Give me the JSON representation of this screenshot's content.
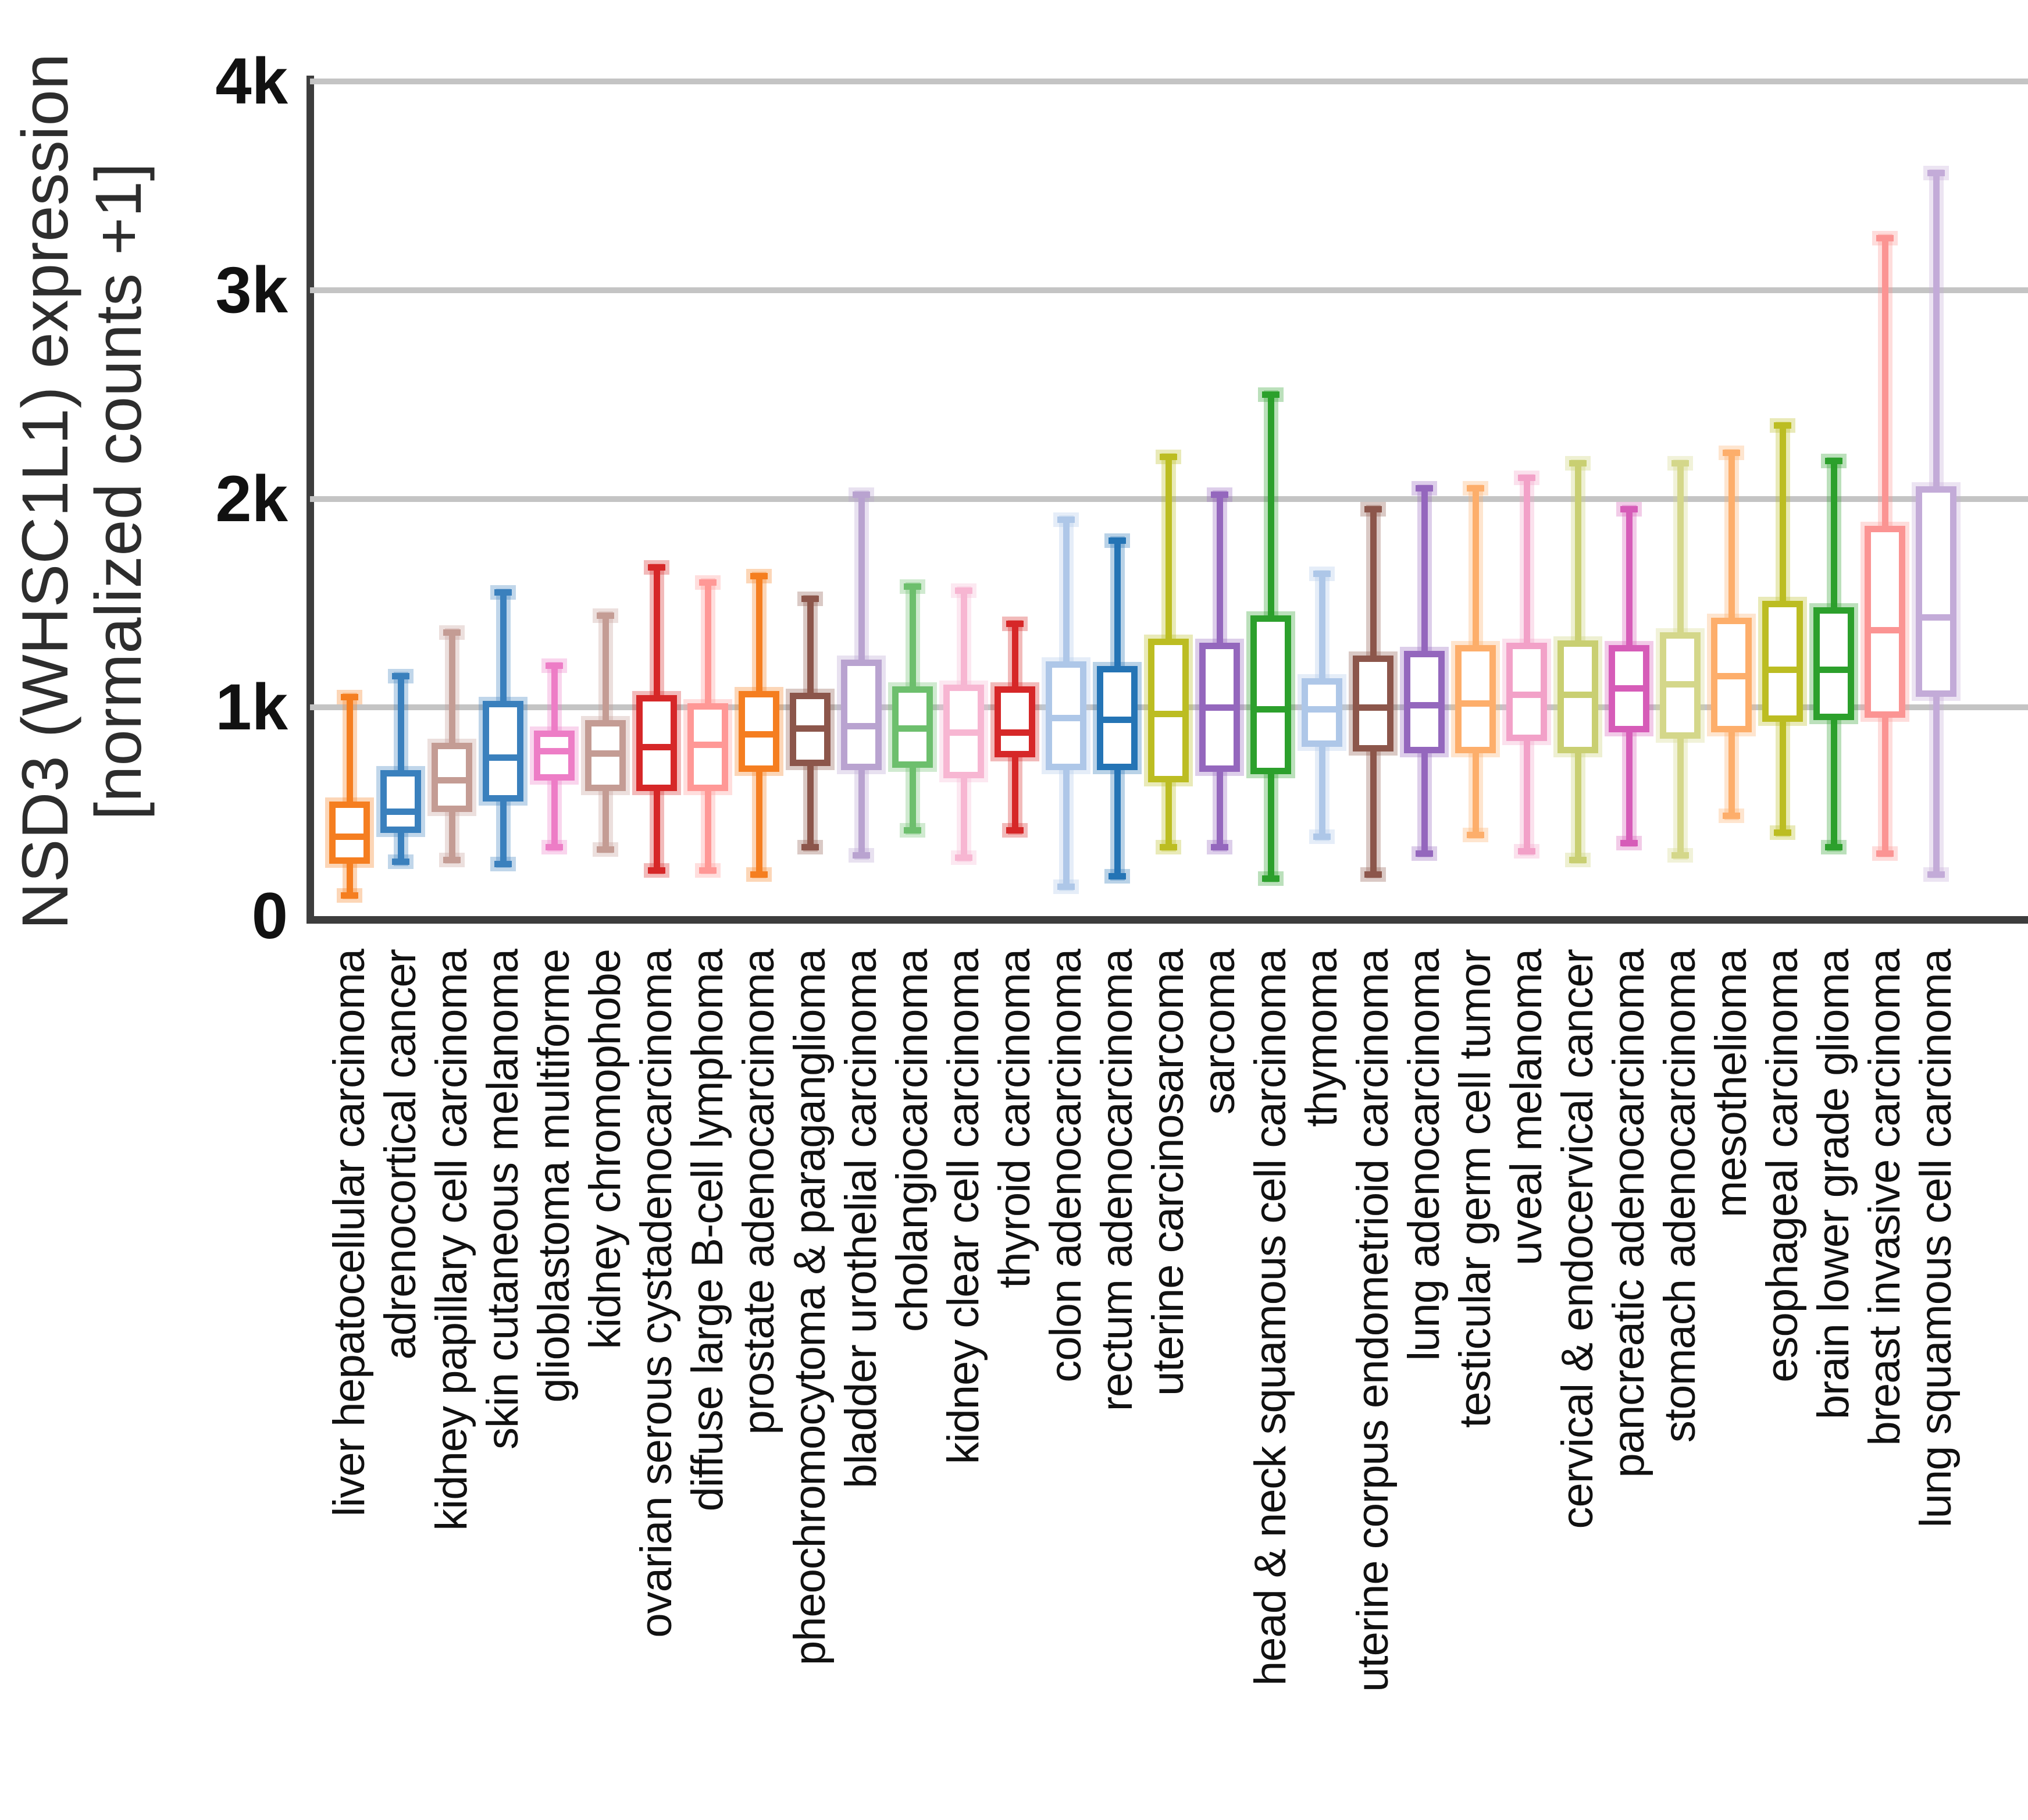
{
  "figure": {
    "background": "#ffffff"
  },
  "y_axis": {
    "title_line1": "NSD3 (WHSC1L1) expression",
    "title_line2": "[normalized counts +1]",
    "tick_labels": [
      "0",
      "1k",
      "2k",
      "3k",
      "4k"
    ],
    "tick_values": [
      0,
      1000,
      2000,
      3000,
      4000
    ]
  },
  "chart_data": {
    "type": "box",
    "title": "",
    "xlabel": "",
    "ylabel": "NSD3 (WHSC1L1) expression [normalized counts +1]",
    "ylim": [
      0,
      4000
    ],
    "grid": "horizontal-only",
    "legend": "none",
    "gridline_color": "#c4c4c4",
    "axis_color": "#3d3d3d",
    "categories": [
      "liver hepatocellular carcinoma",
      "adrenocortical cancer",
      "kidney papillary cell carcinoma",
      "skin cutaneous melanoma",
      "glioblastoma multiforme",
      "kidney chromophobe",
      "ovarian serous cystadenocarcinoma",
      "diffuse large B-cell lymphoma",
      "prostate adenocarcinoma",
      "pheochromocytoma & paraganglioma",
      "bladder urothelial carcinoma",
      "cholangiocarcinoma",
      "kidney clear cell carcinoma",
      "thyroid carcinoma",
      "colon adenocarcinoma",
      "rectum adenocarcinoma",
      "uterine carcinosarcoma",
      "sarcoma",
      "head & neck squamous cell carcinoma",
      "thymoma",
      "uterine corpus endometrioid carcinoma",
      "lung adenocarcinoma",
      "testicular germ cell tumor",
      "uveal melanoma",
      "cervical & endocervical cancer",
      "pancreatic adenocarcinoma",
      "stomach adenocarcinoma",
      "mesothelioma",
      "esophageal carcinoma",
      "brain lower grade glioma",
      "breast invasive carcinoma",
      "lung squamous cell carcinoma"
    ],
    "series": [
      {
        "name": "liver hepatocellular carcinoma",
        "color": "#f57e20",
        "whisker_low": 100,
        "q1": 250,
        "median": 380,
        "q3": 550,
        "whisker_high": 1050
      },
      {
        "name": "adrenocortical cancer",
        "color": "#3a80bd",
        "whisker_low": 260,
        "q1": 400,
        "median": 500,
        "q3": 700,
        "whisker_high": 1150
      },
      {
        "name": "kidney papillary cell carcinoma",
        "color": "#c49c94",
        "whisker_low": 270,
        "q1": 500,
        "median": 650,
        "q3": 830,
        "whisker_high": 1360
      },
      {
        "name": "skin cutaneous melanoma",
        "color": "#3a80bd",
        "whisker_low": 250,
        "q1": 550,
        "median": 760,
        "q3": 1030,
        "whisker_high": 1550
      },
      {
        "name": "glioblastoma multiforme",
        "color": "#ed7dc6",
        "whisker_low": 330,
        "q1": 650,
        "median": 790,
        "q3": 890,
        "whisker_high": 1200
      },
      {
        "name": "kidney chromophobe",
        "color": "#c49c94",
        "whisker_low": 320,
        "q1": 600,
        "median": 780,
        "q3": 940,
        "whisker_high": 1440
      },
      {
        "name": "ovarian serous cystadenocarcinoma",
        "color": "#d62728",
        "whisker_low": 220,
        "q1": 600,
        "median": 810,
        "q3": 1060,
        "whisker_high": 1670
      },
      {
        "name": "diffuse large B-cell lymphoma",
        "color": "#ff9896",
        "whisker_low": 220,
        "q1": 600,
        "median": 820,
        "q3": 1020,
        "whisker_high": 1600
      },
      {
        "name": "prostate adenocarcinoma",
        "color": "#f57e20",
        "whisker_low": 200,
        "q1": 690,
        "median": 870,
        "q3": 1080,
        "whisker_high": 1630
      },
      {
        "name": "pheochromocytoma & paraganglioma",
        "color": "#8c564b",
        "whisker_low": 330,
        "q1": 720,
        "median": 900,
        "q3": 1070,
        "whisker_high": 1520
      },
      {
        "name": "bladder urothelial carcinoma",
        "color": "#b9a3d0",
        "whisker_low": 290,
        "q1": 700,
        "median": 910,
        "q3": 1230,
        "whisker_high": 2020
      },
      {
        "name": "cholangiocarcinoma",
        "color": "#6dbf6d",
        "whisker_low": 410,
        "q1": 710,
        "median": 900,
        "q3": 1100,
        "whisker_high": 1580
      },
      {
        "name": "kidney clear cell carcinoma",
        "color": "#f7b6d2",
        "whisker_low": 280,
        "q1": 660,
        "median": 880,
        "q3": 1110,
        "whisker_high": 1560
      },
      {
        "name": "thyroid carcinoma",
        "color": "#d62728",
        "whisker_low": 410,
        "q1": 760,
        "median": 880,
        "q3": 1100,
        "whisker_high": 1400
      },
      {
        "name": "colon adenocarcinoma",
        "color": "#aec7e8",
        "whisker_low": 140,
        "q1": 700,
        "median": 950,
        "q3": 1220,
        "whisker_high": 1900
      },
      {
        "name": "rectum adenocarcinoma",
        "color": "#2474b5",
        "whisker_low": 190,
        "q1": 700,
        "median": 940,
        "q3": 1200,
        "whisker_high": 1800
      },
      {
        "name": "uterine carcinosarcoma",
        "color": "#bcbd22",
        "whisker_low": 330,
        "q1": 640,
        "median": 970,
        "q3": 1330,
        "whisker_high": 2200
      },
      {
        "name": "sarcoma",
        "color": "#9467bd",
        "whisker_low": 330,
        "q1": 690,
        "median": 1000,
        "q3": 1310,
        "whisker_high": 2020
      },
      {
        "name": "head & neck squamous cell carcinoma",
        "color": "#2ca02c",
        "whisker_low": 180,
        "q1": 680,
        "median": 990,
        "q3": 1440,
        "whisker_high": 2500
      },
      {
        "name": "thymoma",
        "color": "#aec7e8",
        "whisker_low": 380,
        "q1": 810,
        "median": 990,
        "q3": 1140,
        "whisker_high": 1640
      },
      {
        "name": "uterine corpus endometrioid carcinoma",
        "color": "#8c564b",
        "whisker_low": 200,
        "q1": 790,
        "median": 1000,
        "q3": 1250,
        "whisker_high": 1950
      },
      {
        "name": "lung adenocarcinoma",
        "color": "#9467bd",
        "whisker_low": 300,
        "q1": 780,
        "median": 1010,
        "q3": 1270,
        "whisker_high": 2050
      },
      {
        "name": "testicular germ cell tumor",
        "color": "#fdae6b",
        "whisker_low": 390,
        "q1": 780,
        "median": 1020,
        "q3": 1300,
        "whisker_high": 2050
      },
      {
        "name": "uveal melanoma",
        "color": "#f2a1c8",
        "whisker_low": 310,
        "q1": 840,
        "median": 1060,
        "q3": 1310,
        "whisker_high": 2100
      },
      {
        "name": "cervical & endocervical cancer",
        "color": "#c9cf72",
        "whisker_low": 270,
        "q1": 780,
        "median": 1060,
        "q3": 1320,
        "whisker_high": 2170
      },
      {
        "name": "pancreatic adenocarcinoma",
        "color": "#d65cb8",
        "whisker_low": 350,
        "q1": 880,
        "median": 1090,
        "q3": 1300,
        "whisker_high": 1950
      },
      {
        "name": "stomach adenocarcinoma",
        "color": "#d4d78a",
        "whisker_low": 290,
        "q1": 850,
        "median": 1110,
        "q3": 1360,
        "whisker_high": 2170
      },
      {
        "name": "mesothelioma",
        "color": "#fdae6b",
        "whisker_low": 480,
        "q1": 880,
        "median": 1150,
        "q3": 1430,
        "whisker_high": 2220
      },
      {
        "name": "esophageal carcinoma",
        "color": "#bcbd22",
        "whisker_low": 400,
        "q1": 930,
        "median": 1180,
        "q3": 1510,
        "whisker_high": 2350
      },
      {
        "name": "brain lower grade glioma",
        "color": "#2ca02c",
        "whisker_low": 330,
        "q1": 940,
        "median": 1180,
        "q3": 1480,
        "whisker_high": 2180
      },
      {
        "name": "breast invasive carcinoma",
        "color": "#fb9493",
        "whisker_low": 300,
        "q1": 950,
        "median": 1370,
        "q3": 1870,
        "whisker_high": 3250
      },
      {
        "name": "lung squamous cell carcinoma",
        "color": "#c3abd8",
        "whisker_low": 200,
        "q1": 1050,
        "median": 1430,
        "q3": 2060,
        "whisker_high": 3560
      }
    ]
  }
}
